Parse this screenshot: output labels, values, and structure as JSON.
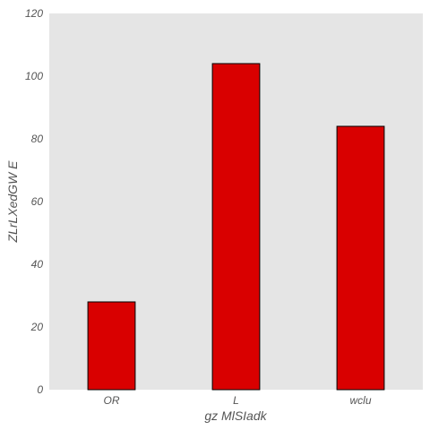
{
  "chart_data": {
    "type": "bar",
    "title": "",
    "xlabel": "gz MlSIadk",
    "ylabel": "ZLrLXedGW E",
    "categories": [
      "OR",
      "L",
      "wclu"
    ],
    "values": [
      28,
      104,
      84
    ],
    "ylim": [
      0,
      120
    ],
    "yticks": [
      0,
      20,
      40,
      60,
      80,
      100,
      120
    ],
    "grid": false,
    "colors": {
      "bar_fill": "#d90000",
      "bar_stroke": "#000000",
      "plot_background": "#e5e5e5"
    }
  }
}
